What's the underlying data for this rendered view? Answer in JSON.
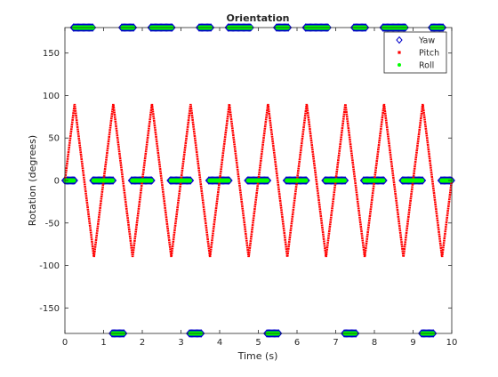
{
  "chart_data": {
    "type": "scatter",
    "title": "Orientation",
    "xlabel": "Time (s)",
    "ylabel": "Rotation (degrees)",
    "xlim": [
      0,
      10
    ],
    "ylim": [
      -180,
      180
    ],
    "x_ticks": [
      0,
      1,
      2,
      3,
      4,
      5,
      6,
      7,
      8,
      9,
      10
    ],
    "y_ticks": [
      -150,
      -100,
      -50,
      0,
      50,
      100,
      150
    ],
    "x_tick_labels": [
      "0",
      "1",
      "2",
      "3",
      "4",
      "5",
      "6",
      "7",
      "8",
      "9",
      "10"
    ],
    "y_tick_labels": [
      "-150",
      "-100",
      "-50",
      "0",
      "50",
      "100",
      "150"
    ],
    "grid": false,
    "legend_position": "top-right",
    "series": [
      {
        "name": "Yaw",
        "marker": "diamond-open",
        "color": "#0000cc",
        "segments": [
          {
            "y": 180,
            "x": [
              0.22,
              0.74
            ]
          },
          {
            "y": 180,
            "x": [
              1.47,
              1.78
            ]
          },
          {
            "y": 180,
            "x": [
              2.22,
              2.78
            ]
          },
          {
            "y": 180,
            "x": [
              3.47,
              3.78
            ]
          },
          {
            "y": 180,
            "x": [
              4.22,
              4.82
            ]
          },
          {
            "y": 180,
            "x": [
              5.47,
              5.78
            ]
          },
          {
            "y": 180,
            "x": [
              6.22,
              6.82
            ]
          },
          {
            "y": 180,
            "x": [
              7.47,
              7.78
            ]
          },
          {
            "y": 180,
            "x": [
              8.22,
              8.82
            ]
          },
          {
            "y": 180,
            "x": [
              9.47,
              9.78
            ]
          },
          {
            "y": 0,
            "x": [
              0.0,
              0.25
            ]
          },
          {
            "y": 0,
            "x": [
              0.72,
              1.25
            ]
          },
          {
            "y": 0,
            "x": [
              1.72,
              2.25
            ]
          },
          {
            "y": 0,
            "x": [
              2.72,
              3.25
            ]
          },
          {
            "y": 0,
            "x": [
              3.72,
              4.25
            ]
          },
          {
            "y": 0,
            "x": [
              4.72,
              5.25
            ]
          },
          {
            "y": 0,
            "x": [
              5.72,
              6.25
            ]
          },
          {
            "y": 0,
            "x": [
              6.72,
              7.25
            ]
          },
          {
            "y": 0,
            "x": [
              7.72,
              8.25
            ]
          },
          {
            "y": 0,
            "x": [
              8.72,
              9.25
            ]
          },
          {
            "y": 0,
            "x": [
              9.72,
              10.0
            ]
          },
          {
            "y": -180,
            "x": [
              1.22,
              1.53
            ]
          },
          {
            "y": -180,
            "x": [
              3.22,
              3.53
            ]
          },
          {
            "y": -180,
            "x": [
              5.22,
              5.53
            ]
          },
          {
            "y": -180,
            "x": [
              7.22,
              7.53
            ]
          },
          {
            "y": -180,
            "x": [
              9.22,
              9.53
            ]
          }
        ]
      },
      {
        "name": "Pitch",
        "marker": "square",
        "color": "#ff0000",
        "x": [
          0,
          0.25,
          0.75,
          1.25,
          1.75,
          2.25,
          2.75,
          3.25,
          3.75,
          4.25,
          4.75,
          5.25,
          5.75,
          6.25,
          6.75,
          7.25,
          7.75,
          8.25,
          8.75,
          9.25,
          9.75,
          10
        ],
        "y": [
          0,
          90,
          -90,
          90,
          -90,
          90,
          -90,
          90,
          -90,
          90,
          -90,
          90,
          -90,
          90,
          -90,
          90,
          -90,
          90,
          -90,
          90,
          -90,
          0
        ]
      },
      {
        "name": "Roll",
        "marker": "point",
        "color": "#00ff00",
        "segments": [
          {
            "y": 180,
            "x": [
              0.24,
              0.72
            ]
          },
          {
            "y": 180,
            "x": [
              1.49,
              1.76
            ]
          },
          {
            "y": 180,
            "x": [
              2.24,
              2.76
            ]
          },
          {
            "y": 180,
            "x": [
              3.49,
              3.76
            ]
          },
          {
            "y": 180,
            "x": [
              4.24,
              4.8
            ]
          },
          {
            "y": 180,
            "x": [
              5.49,
              5.76
            ]
          },
          {
            "y": 180,
            "x": [
              6.24,
              6.8
            ]
          },
          {
            "y": 180,
            "x": [
              7.49,
              7.76
            ]
          },
          {
            "y": 180,
            "x": [
              8.24,
              8.8
            ]
          },
          {
            "y": 180,
            "x": [
              9.49,
              9.76
            ]
          },
          {
            "y": 0,
            "x": [
              0.02,
              0.23
            ]
          },
          {
            "y": 0,
            "x": [
              0.74,
              1.23
            ]
          },
          {
            "y": 0,
            "x": [
              1.74,
              2.23
            ]
          },
          {
            "y": 0,
            "x": [
              2.74,
              3.23
            ]
          },
          {
            "y": 0,
            "x": [
              3.74,
              4.23
            ]
          },
          {
            "y": 0,
            "x": [
              4.74,
              5.23
            ]
          },
          {
            "y": 0,
            "x": [
              5.74,
              6.23
            ]
          },
          {
            "y": 0,
            "x": [
              6.74,
              7.23
            ]
          },
          {
            "y": 0,
            "x": [
              7.74,
              8.23
            ]
          },
          {
            "y": 0,
            "x": [
              8.74,
              9.23
            ]
          },
          {
            "y": 0,
            "x": [
              9.74,
              9.98
            ]
          },
          {
            "y": -180,
            "x": [
              1.24,
              1.51
            ]
          },
          {
            "y": -180,
            "x": [
              3.24,
              3.51
            ]
          },
          {
            "y": -180,
            "x": [
              5.24,
              5.51
            ]
          },
          {
            "y": -180,
            "x": [
              7.24,
              7.51
            ]
          },
          {
            "y": -180,
            "x": [
              9.24,
              9.51
            ]
          }
        ]
      }
    ]
  }
}
